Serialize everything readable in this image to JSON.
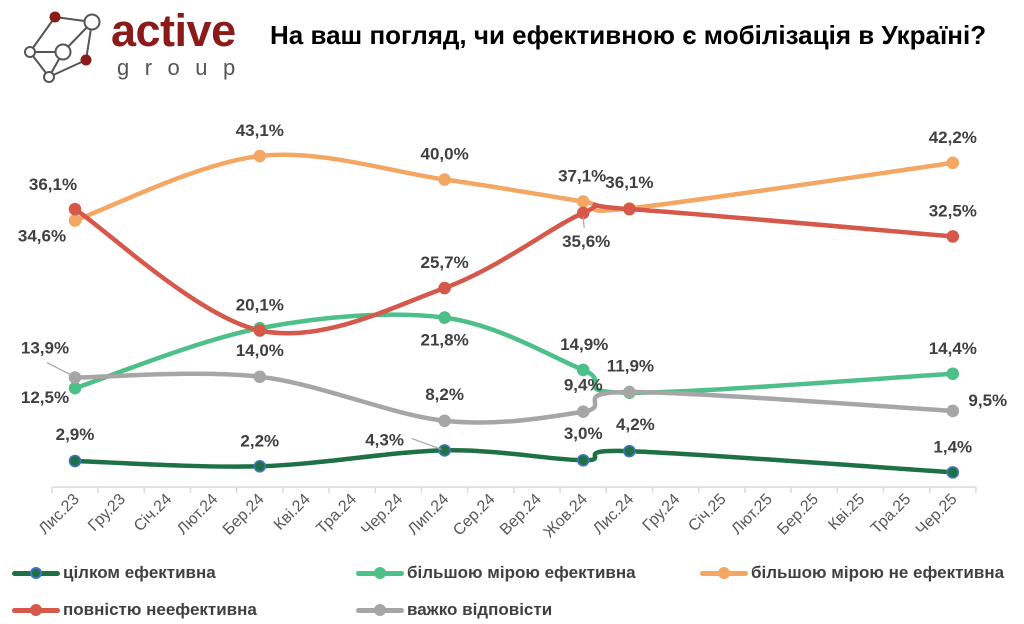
{
  "logo": {
    "word1": "active",
    "word2": "group",
    "brand_color": "#8B1A1A",
    "node_color": "#555555"
  },
  "title": "На ваш погляд, чи ефективною є мобілізація в Україні?",
  "chart_data": {
    "type": "line",
    "title": "На ваш погляд, чи ефективною є мобілізація в Україні?",
    "xlabel": "",
    "ylabel": "",
    "ylim": [
      0,
      45
    ],
    "grid": false,
    "smooth": true,
    "legend_position": "bottom",
    "categories": [
      "Лис.23",
      "Гру.23",
      "Січ.24",
      "Лют.24",
      "Бер.24",
      "Кві.24",
      "Тра.24",
      "Чер.24",
      "Лип.24",
      "Сер.24",
      "Вер.24",
      "Жов.24",
      "Лис.24",
      "Гру.24",
      "Січ.25",
      "Лют.25",
      "Бер.25",
      "Кві.25",
      "Тра.25",
      "Чер.25"
    ],
    "series": [
      {
        "name": "цілком ефективна",
        "color": "#1E7145",
        "marker_edge": "#4472C4",
        "points": [
          {
            "x": "Лис.23",
            "value": 2.9,
            "label": "2,9%"
          },
          {
            "x": "Бер.24",
            "value": 2.2,
            "label": "2,2%"
          },
          {
            "x": "Лип.24",
            "value": 4.3,
            "label": "4,3%"
          },
          {
            "x": "Жов.24",
            "value": 3.0,
            "label": "3,0%"
          },
          {
            "x": "Лис.24",
            "value": 4.2,
            "label": "4,2%"
          },
          {
            "x": "Чер.25",
            "value": 1.4,
            "label": "1,4%"
          }
        ]
      },
      {
        "name": "більшою мірою ефективна",
        "color": "#4DBF88",
        "marker_edge": "#4DBF88",
        "points": [
          {
            "x": "Лис.23",
            "value": 12.5,
            "label": "12,5%"
          },
          {
            "x": "Бер.24",
            "value": 20.4,
            "label": null
          },
          {
            "x": "Лип.24",
            "value": 21.8,
            "label": "21,8%"
          },
          {
            "x": "Жов.24",
            "value": 14.9,
            "label": "14,9%"
          },
          {
            "x": "Лис.24",
            "value": 11.9,
            "label": "11,9%"
          },
          {
            "x": "Чер.25",
            "value": 14.4,
            "label": "14,4%"
          }
        ]
      },
      {
        "name": "більшою мірою не ефективна",
        "color": "#F4A663",
        "marker_edge": "#F4A663",
        "points": [
          {
            "x": "Лис.23",
            "value": 34.6,
            "label": "34,6%"
          },
          {
            "x": "Бер.24",
            "value": 43.1,
            "label": "43,1%"
          },
          {
            "x": "Лип.24",
            "value": 40.0,
            "label": "40,0%"
          },
          {
            "x": "Жов.24",
            "value": 37.1,
            "label": "37,1%"
          },
          {
            "x": "Лис.24",
            "value": 36.2,
            "label": null
          },
          {
            "x": "Чер.25",
            "value": 42.2,
            "label": "42,2%"
          }
        ]
      },
      {
        "name": "повністю неефективна",
        "color": "#D6584A",
        "marker_edge": "#D6584A",
        "points": [
          {
            "x": "Лис.23",
            "value": 36.1,
            "label": "36,1%"
          },
          {
            "x": "Бер.24",
            "value": 20.1,
            "label": "20,1%"
          },
          {
            "x": "Лип.24",
            "value": 25.7,
            "label": "25,7%"
          },
          {
            "x": "Жов.24",
            "value": 35.6,
            "label": "35,6%"
          },
          {
            "x": "Лис.24",
            "value": 36.1,
            "label": "36,1%"
          },
          {
            "x": "Чер.25",
            "value": 32.5,
            "label": "32,5%"
          }
        ]
      },
      {
        "name": "важко відповісти",
        "color": "#A6A6A6",
        "marker_edge": "#A6A6A6",
        "points": [
          {
            "x": "Лис.23",
            "value": 13.9,
            "label": "13,9%"
          },
          {
            "x": "Бер.24",
            "value": 14.0,
            "label": "14,0%"
          },
          {
            "x": "Лип.24",
            "value": 8.2,
            "label": "8,2%"
          },
          {
            "x": "Жов.24",
            "value": 9.4,
            "label": "9,4%"
          },
          {
            "x": "Лис.24",
            "value": 12.0,
            "label": null
          },
          {
            "x": "Чер.25",
            "value": 9.5,
            "label": "9,5%"
          }
        ]
      }
    ]
  }
}
